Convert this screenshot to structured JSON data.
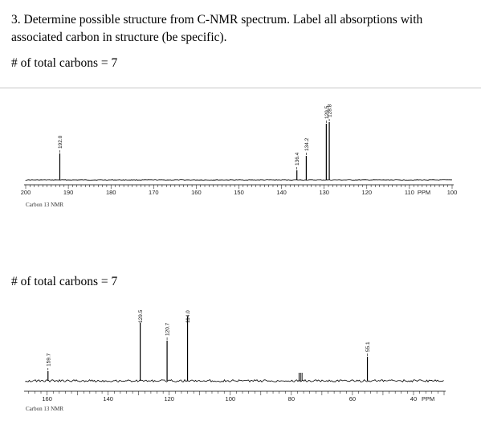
{
  "question": {
    "text": "3. Determine possible structure from C-NMR spectrum. Label all absorptions with associated carbon in structure (be specific)."
  },
  "spectrum1_heading": "# of total carbons = 7",
  "spectrum2_heading": "# of total carbons = 7",
  "colors": {
    "line": "#000000",
    "divider": "#c8c8c8"
  },
  "chart_data": [
    {
      "type": "line",
      "title": "",
      "caption": "Carbon 13 NMR",
      "xlabel": "PPM",
      "x_direction": "decreasing",
      "xlim": [
        200,
        100
      ],
      "ticks": [
        200,
        190,
        180,
        170,
        160,
        150,
        140,
        130,
        120,
        110,
        100
      ],
      "ppm_tick": 110,
      "peaks": [
        {
          "ppm": 192.0,
          "label": "192.0",
          "height": 0.33
        },
        {
          "ppm": 136.4,
          "label": "136.4",
          "height": 0.12
        },
        {
          "ppm": 134.2,
          "label": "134.2",
          "height": 0.3
        },
        {
          "ppm": 129.5,
          "label": "129.5",
          "height": 0.7
        },
        {
          "ppm": 128.8,
          "label": "128.8",
          "height": 0.72
        }
      ]
    },
    {
      "type": "line",
      "title": "",
      "caption": "Carbon 13 NMR",
      "xlabel": "PPM",
      "x_direction": "decreasing",
      "xlim": [
        167,
        30
      ],
      "ticks": [
        160,
        140,
        120,
        100,
        80,
        60,
        40
      ],
      "ppm_tick": 40,
      "peaks": [
        {
          "ppm": 159.7,
          "label": "159.7",
          "height": 0.12
        },
        {
          "ppm": 129.5,
          "label": "129.5",
          "height": 0.72
        },
        {
          "ppm": 120.7,
          "label": "120.7",
          "height": 0.5
        },
        {
          "ppm": 114.0,
          "label": "114.0",
          "height": 0.8
        },
        {
          "ppm": 55.1,
          "label": "55.1",
          "height": 0.3
        }
      ],
      "solvent_peaks": [
        77.5,
        77.0,
        76.5
      ]
    }
  ]
}
